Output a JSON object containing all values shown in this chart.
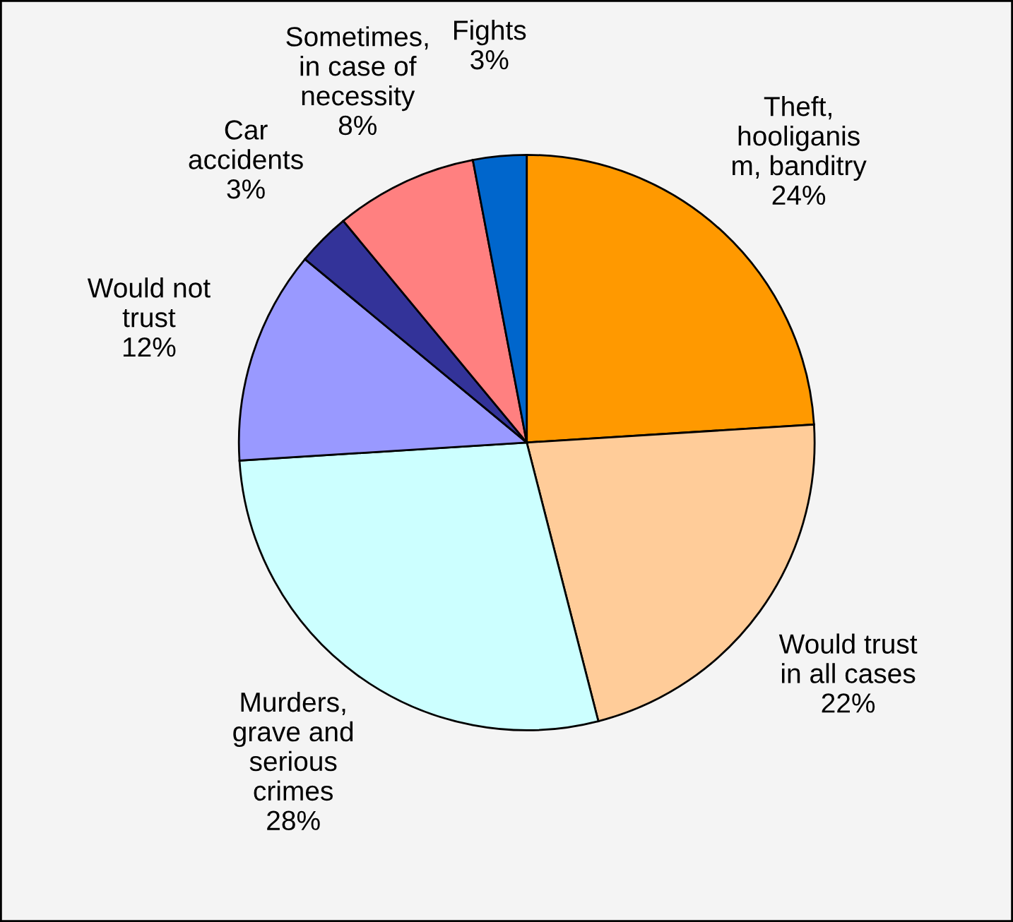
{
  "chart_data": {
    "type": "pie",
    "categories": [
      "Theft,\nhooliganis\nm, banditry",
      "Would trust\nin all cases",
      "Murders,\ngrave and\nserious\ncrimes",
      "Would not\ntrust",
      "Car\naccidents",
      "Sometimes,\nin case of\nnecessity",
      "Fights"
    ],
    "values": [
      24,
      22,
      28,
      12,
      3,
      8,
      3
    ],
    "value_labels": [
      "24%",
      "22%",
      "28%",
      "12%",
      "3%",
      "8%",
      "3%"
    ],
    "colors": [
      "#ff9900",
      "#ffcc99",
      "#ccffff",
      "#9999ff",
      "#333399",
      "#ff8080",
      "#0066cc"
    ],
    "legend": false
  }
}
